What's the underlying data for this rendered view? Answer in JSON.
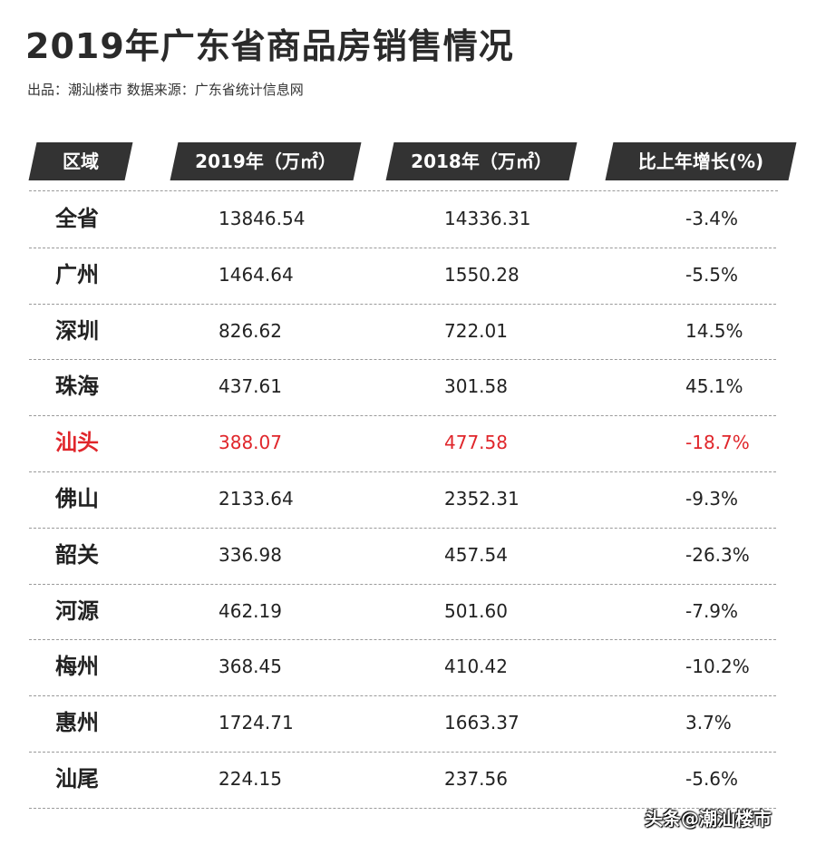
{
  "title": "2019年广东省商品房销售情况",
  "source": "出品：潮汕楼市  数据来源：广东省统计信息网",
  "headers": {
    "region": "区域",
    "y2019": "2019年（万㎡）",
    "y2018": "2018年（万㎡）",
    "growth": "比上年增长(%)"
  },
  "rows": [
    {
      "region": "全省",
      "y2019": "13846.54",
      "y2018": "14336.31",
      "growth": "-3.4%"
    },
    {
      "region": "广州",
      "y2019": "1464.64",
      "y2018": "1550.28",
      "growth": "-5.5%"
    },
    {
      "region": "深圳",
      "y2019": "826.62",
      "y2018": "722.01",
      "growth": "14.5%"
    },
    {
      "region": "珠海",
      "y2019": "437.61",
      "y2018": "301.58",
      "growth": "45.1%"
    },
    {
      "region": "汕头",
      "y2019": "388.07",
      "y2018": "477.58",
      "growth": "-18.7%"
    },
    {
      "region": "佛山",
      "y2019": "2133.64",
      "y2018": "2352.31",
      "growth": "-9.3%"
    },
    {
      "region": "韶关",
      "y2019": "336.98",
      "y2018": "457.54",
      "growth": "-26.3%"
    },
    {
      "region": "河源",
      "y2019": "462.19",
      "y2018": "501.60",
      "growth": "-7.9%"
    },
    {
      "region": "梅州",
      "y2019": "368.45",
      "y2018": "410.42",
      "growth": "-10.2%"
    },
    {
      "region": "惠州",
      "y2019": "1724.71",
      "y2018": "1663.37",
      "growth": "3.7%"
    },
    {
      "region": "汕尾",
      "y2019": "224.15",
      "y2018": "237.56",
      "growth": "-5.6%"
    }
  ],
  "highlight_region": "汕头",
  "highlight_color": "#e0262b",
  "watermark": "头条@潮汕楼市"
}
